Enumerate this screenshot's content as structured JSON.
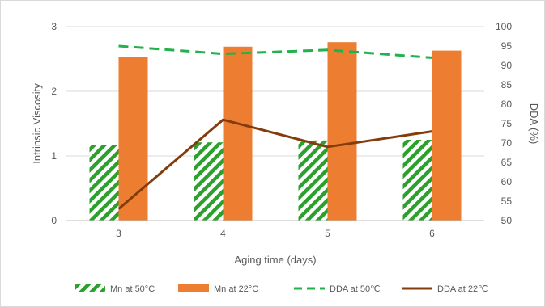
{
  "chart_data": {
    "type": "bar",
    "title": "",
    "categories": [
      "3",
      "4",
      "5",
      "6"
    ],
    "xlabel": "Aging time (days)",
    "ylabel": "Intrinsic Viscosity",
    "y2label": "DDA (%)",
    "ylim": [
      0,
      3
    ],
    "yticks": [
      "0",
      "1",
      "2",
      "3"
    ],
    "y2lim": [
      50,
      100
    ],
    "y2ticks": [
      "50",
      "55",
      "60",
      "65",
      "70",
      "75",
      "80",
      "85",
      "90",
      "95",
      "100"
    ],
    "grid": true,
    "legend_position": "bottom",
    "series": [
      {
        "name": "Mn at 50°C",
        "kind": "bar",
        "axis": "left",
        "pattern": "diagonal-hatch",
        "color": "#2ca02c",
        "values": [
          1.17,
          1.21,
          1.24,
          1.25
        ]
      },
      {
        "name": "Mn at 22°C",
        "kind": "bar",
        "axis": "left",
        "color": "#ed7d31",
        "values": [
          2.53,
          2.69,
          2.76,
          2.63
        ]
      },
      {
        "name": "DDA at 50℃",
        "kind": "line",
        "axis": "right",
        "dash": "dashed",
        "color": "#22b14c",
        "values": [
          95,
          93,
          94,
          92
        ]
      },
      {
        "name": "DDA at 22℃",
        "kind": "line",
        "axis": "right",
        "dash": "solid",
        "color": "#843c0c",
        "values": [
          53,
          76,
          69,
          73
        ]
      }
    ]
  }
}
